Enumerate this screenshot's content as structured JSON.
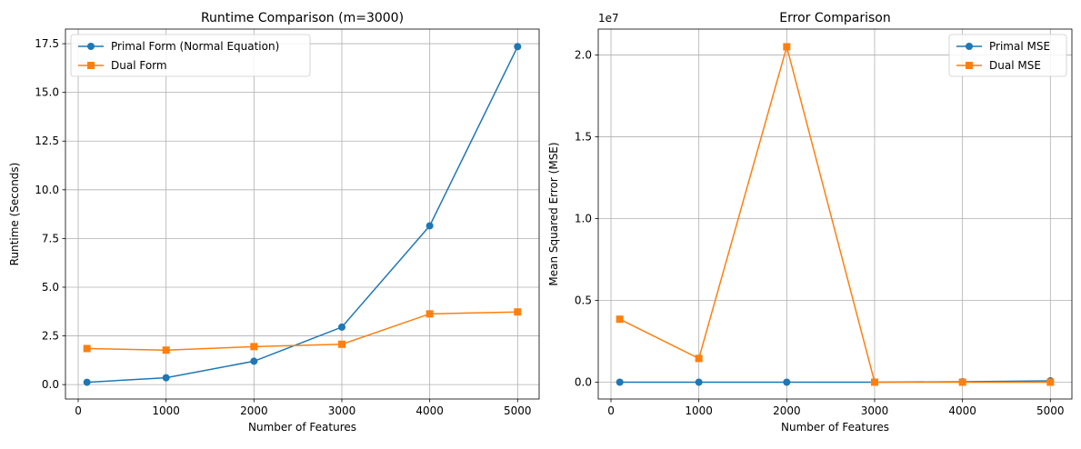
{
  "chart_data": [
    {
      "type": "line",
      "title": "Runtime Comparison (m=3000)",
      "xlabel": "Number of Features",
      "ylabel": "Runtime (Seconds)",
      "x": [
        100,
        1000,
        2000,
        3000,
        4000,
        5000
      ],
      "xticks": [
        "0",
        "1000",
        "2000",
        "3000",
        "4000",
        "5000"
      ],
      "yticks": [
        "0.0",
        "2.5",
        "5.0",
        "7.5",
        "10.0",
        "12.5",
        "15.0",
        "17.5"
      ],
      "xlim": [
        -145,
        5245
      ],
      "ylim": [
        -0.74,
        18.25
      ],
      "grid": true,
      "legend_position": "upper-left",
      "series": [
        {
          "name": "Primal Form (Normal Equation)",
          "color": "#1f77b4",
          "marker": "circle",
          "values": [
            0.12,
            0.35,
            1.2,
            2.95,
            8.15,
            17.35
          ]
        },
        {
          "name": "Dual Form",
          "color": "#ff7f0e",
          "marker": "square",
          "values": [
            1.85,
            1.77,
            1.95,
            2.07,
            3.63,
            3.73
          ]
        }
      ]
    },
    {
      "type": "line",
      "title": "Error Comparison",
      "xlabel": "Number of Features",
      "ylabel": "Mean Squared Error (MSE)",
      "offset_label": "1e7",
      "x": [
        100,
        1000,
        2000,
        3000,
        4000,
        5000
      ],
      "xticks": [
        "0",
        "1000",
        "2000",
        "3000",
        "4000",
        "5000"
      ],
      "yticks": [
        "0.0",
        "0.5",
        "1.0",
        "1.5",
        "2.0"
      ],
      "xlim": [
        -145,
        5245
      ],
      "ylim": [
        -0.1028,
        2.158
      ],
      "grid": true,
      "legend_position": "upper-right",
      "series": [
        {
          "name": "Primal MSE",
          "color": "#1f77b4",
          "marker": "circle",
          "values": [
            0.0,
            0.0,
            0.0,
            0.0,
            0.003,
            0.008
          ]
        },
        {
          "name": "Dual MSE",
          "color": "#ff7f0e",
          "marker": "square",
          "values": [
            0.385,
            0.145,
            2.05,
            0.0,
            0.0,
            0.0
          ]
        }
      ]
    }
  ]
}
